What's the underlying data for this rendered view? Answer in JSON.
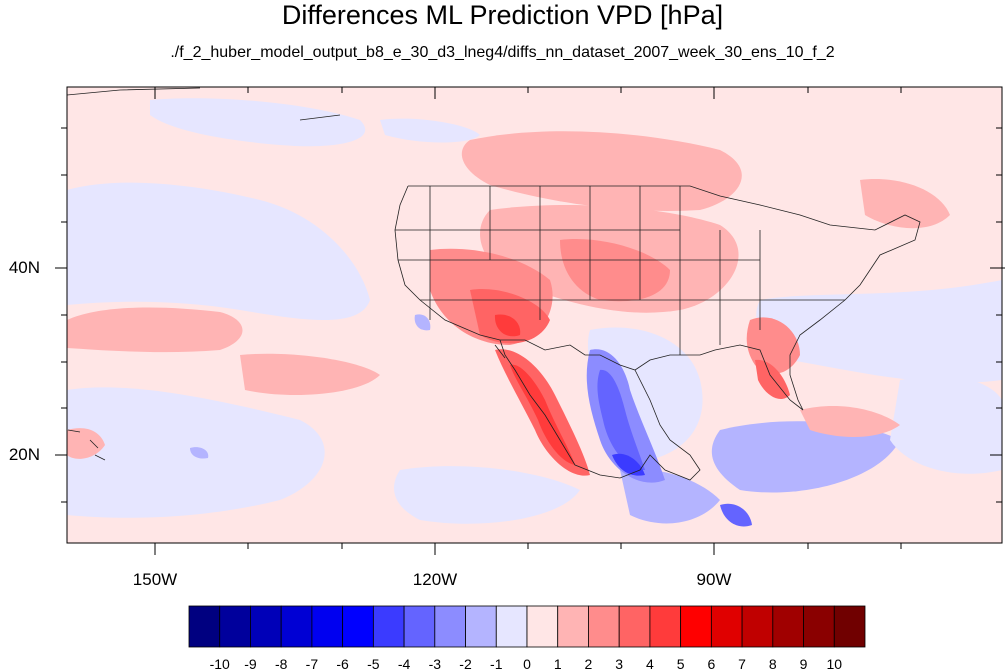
{
  "title": "Differences ML Prediction VPD [hPa]",
  "subtitle": "./f_2_huber_model_output_b8_e_30_d3_lneg4/diffs_nn_dataset_2007_week_30_ens_10_f_2",
  "lat_labels": [
    "40N",
    "20N"
  ],
  "lon_labels": [
    "150W",
    "120W",
    "90W"
  ],
  "colorbar": {
    "labels": [
      "-10",
      "-9",
      "-8",
      "-7",
      "-6",
      "-5",
      "-4",
      "-3",
      "-2",
      "-1",
      "0",
      "1",
      "2",
      "3",
      "4",
      "5",
      "6",
      "7",
      "8",
      "9",
      "10"
    ],
    "colors": [
      "#000080",
      "#00009c",
      "#0000b8",
      "#0000d4",
      "#0000f0",
      "#0000ff",
      "#3b3bff",
      "#6464ff",
      "#8c8cff",
      "#b4b4ff",
      "#e6e6ff",
      "#ffe6e6",
      "#ffb4b4",
      "#ff8c8c",
      "#ff6464",
      "#ff3b3b",
      "#ff0000",
      "#e00000",
      "#c00000",
      "#a00000",
      "#8a0000",
      "#700000"
    ]
  }
}
